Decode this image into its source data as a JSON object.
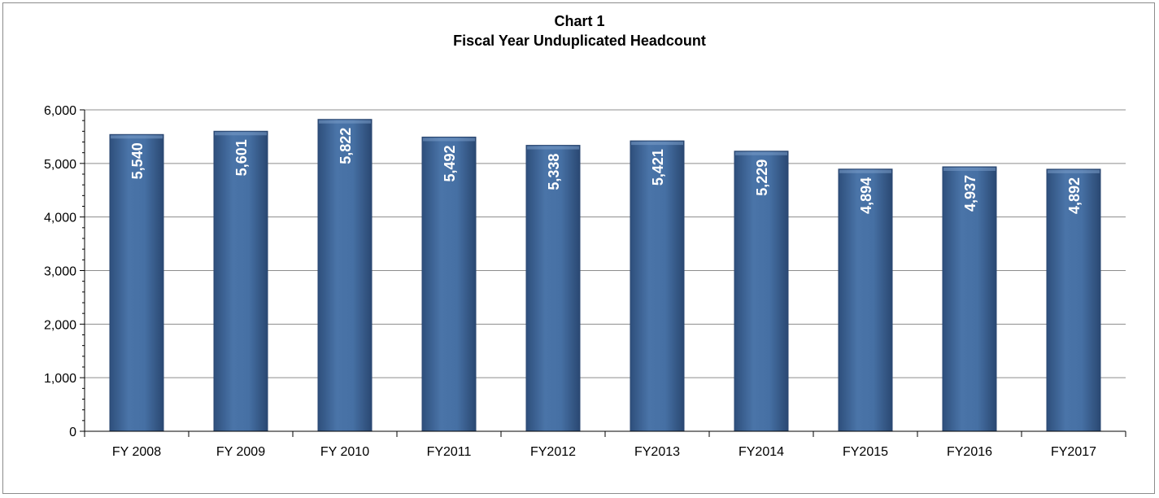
{
  "chart_data": {
    "type": "bar",
    "title_lines": [
      "Chart 1",
      "Fiscal Year Unduplicated Headcount"
    ],
    "categories": [
      "FY 2008",
      "FY 2009",
      "FY 2010",
      "FY2011",
      "FY2012",
      "FY2013",
      "FY2014",
      "FY2015",
      "FY2016",
      "FY2017"
    ],
    "values": [
      5540,
      5601,
      5822,
      5492,
      5338,
      5421,
      5229,
      4894,
      4937,
      4892
    ],
    "value_labels": [
      "5,540",
      "5,601",
      "5,822",
      "5,492",
      "5,338",
      "5,421",
      "5,229",
      "4,894",
      "4,937",
      "4,892"
    ],
    "y_tick_labels": [
      "0",
      "1,000",
      "2,000",
      "3,000",
      "4,000",
      "5,000",
      "6,000"
    ],
    "y_ticks": [
      0,
      1000,
      2000,
      3000,
      4000,
      5000,
      6000
    ],
    "ylim": [
      0,
      6000
    ],
    "xlabel": "",
    "ylabel": "",
    "grid": true,
    "legend": "none",
    "bar_color": "#3c6498",
    "gridline_color": "#8c8c8c"
  }
}
